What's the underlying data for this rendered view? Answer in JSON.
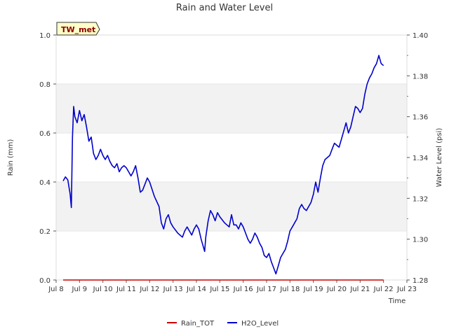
{
  "chart_data": {
    "type": "line",
    "title": "Rain and Water Level",
    "xlabel": "Time",
    "ylabel_left": "Rain (mm)",
    "ylabel_right": "Water Level (psi)",
    "badge": "TW_met",
    "x_tick_labels": [
      "Jul 8",
      "Jul 9",
      "Jul 10",
      "Jul 11",
      "Jul 12",
      "Jul 13",
      "Jul 14",
      "Jul 15",
      "Jul 16",
      "Jul 17",
      "Jul 18",
      "Jul 19",
      "Jul 20",
      "Jul 21",
      "Jul 22",
      "Jul 23"
    ],
    "xlim_days": [
      8,
      23
    ],
    "ylim_left": [
      0.0,
      1.0
    ],
    "ylim_right": [
      1.28,
      1.4
    ],
    "y_left_ticks": [
      "0.0",
      "0.2",
      "0.4",
      "0.6",
      "0.8",
      "1.0"
    ],
    "y_right_ticks": [
      "1.28",
      "1.30",
      "1.32",
      "1.34",
      "1.36",
      "1.38",
      "1.40"
    ],
    "band_color": "#f2f2f2",
    "grid": true,
    "series": [
      {
        "name": "Rain_TOT",
        "color": "#cc0000",
        "axis": "left",
        "points": [
          [
            8.3,
            0.0
          ],
          [
            22.0,
            0.0
          ]
        ]
      },
      {
        "name": "H2O_Level",
        "color": "#0000cc",
        "axis": "right",
        "points": [
          [
            8.3,
            1.3285
          ],
          [
            8.4,
            1.3305
          ],
          [
            8.5,
            1.329
          ],
          [
            8.6,
            1.322
          ],
          [
            8.65,
            1.3155
          ],
          [
            8.7,
            1.35
          ],
          [
            8.75,
            1.365
          ],
          [
            8.8,
            1.36
          ],
          [
            8.9,
            1.357
          ],
          [
            9.0,
            1.363
          ],
          [
            9.1,
            1.358
          ],
          [
            9.2,
            1.361
          ],
          [
            9.3,
            1.355
          ],
          [
            9.4,
            1.348
          ],
          [
            9.5,
            1.35
          ],
          [
            9.6,
            1.342
          ],
          [
            9.7,
            1.339
          ],
          [
            9.8,
            1.341
          ],
          [
            9.9,
            1.344
          ],
          [
            10.0,
            1.341
          ],
          [
            10.1,
            1.339
          ],
          [
            10.2,
            1.341
          ],
          [
            10.3,
            1.338
          ],
          [
            10.4,
            1.336
          ],
          [
            10.5,
            1.335
          ],
          [
            10.6,
            1.337
          ],
          [
            10.7,
            1.333
          ],
          [
            10.8,
            1.335
          ],
          [
            10.9,
            1.336
          ],
          [
            11.0,
            1.335
          ],
          [
            11.1,
            1.333
          ],
          [
            11.2,
            1.331
          ],
          [
            11.3,
            1.333
          ],
          [
            11.4,
            1.336
          ],
          [
            11.5,
            1.33
          ],
          [
            11.6,
            1.323
          ],
          [
            11.7,
            1.324
          ],
          [
            11.8,
            1.327
          ],
          [
            11.9,
            1.33
          ],
          [
            12.0,
            1.328
          ],
          [
            12.2,
            1.321
          ],
          [
            12.4,
            1.316
          ],
          [
            12.5,
            1.308
          ],
          [
            12.6,
            1.305
          ],
          [
            12.7,
            1.31
          ],
          [
            12.8,
            1.312
          ],
          [
            12.9,
            1.308
          ],
          [
            13.0,
            1.306
          ],
          [
            13.2,
            1.303
          ],
          [
            13.4,
            1.301
          ],
          [
            13.5,
            1.304
          ],
          [
            13.6,
            1.306
          ],
          [
            13.7,
            1.304
          ],
          [
            13.8,
            1.302
          ],
          [
            13.9,
            1.305
          ],
          [
            14.0,
            1.307
          ],
          [
            14.1,
            1.305
          ],
          [
            14.2,
            1.3
          ],
          [
            14.35,
            1.294
          ],
          [
            14.4,
            1.301
          ],
          [
            14.5,
            1.309
          ],
          [
            14.6,
            1.314
          ],
          [
            14.7,
            1.312
          ],
          [
            14.8,
            1.309
          ],
          [
            14.9,
            1.313
          ],
          [
            15.0,
            1.311
          ],
          [
            15.2,
            1.308
          ],
          [
            15.4,
            1.306
          ],
          [
            15.5,
            1.312
          ],
          [
            15.6,
            1.307
          ],
          [
            15.7,
            1.307
          ],
          [
            15.8,
            1.305
          ],
          [
            15.9,
            1.308
          ],
          [
            16.0,
            1.306
          ],
          [
            16.1,
            1.303
          ],
          [
            16.2,
            1.3
          ],
          [
            16.3,
            1.298
          ],
          [
            16.4,
            1.3
          ],
          [
            16.5,
            1.303
          ],
          [
            16.6,
            1.301
          ],
          [
            16.7,
            1.298
          ],
          [
            16.8,
            1.296
          ],
          [
            16.9,
            1.292
          ],
          [
            17.0,
            1.291
          ],
          [
            17.1,
            1.293
          ],
          [
            17.2,
            1.289
          ],
          [
            17.3,
            1.286
          ],
          [
            17.4,
            1.283
          ],
          [
            17.5,
            1.287
          ],
          [
            17.6,
            1.291
          ],
          [
            17.7,
            1.293
          ],
          [
            17.8,
            1.295
          ],
          [
            17.9,
            1.299
          ],
          [
            18.0,
            1.304
          ],
          [
            18.1,
            1.306
          ],
          [
            18.2,
            1.308
          ],
          [
            18.3,
            1.31
          ],
          [
            18.4,
            1.315
          ],
          [
            18.5,
            1.317
          ],
          [
            18.6,
            1.315
          ],
          [
            18.7,
            1.314
          ],
          [
            18.8,
            1.316
          ],
          [
            18.9,
            1.318
          ],
          [
            19.0,
            1.322
          ],
          [
            19.1,
            1.328
          ],
          [
            19.2,
            1.323
          ],
          [
            19.3,
            1.33
          ],
          [
            19.4,
            1.336
          ],
          [
            19.5,
            1.339
          ],
          [
            19.6,
            1.34
          ],
          [
            19.7,
            1.341
          ],
          [
            19.8,
            1.344
          ],
          [
            19.9,
            1.347
          ],
          [
            20.0,
            1.346
          ],
          [
            20.1,
            1.345
          ],
          [
            20.2,
            1.349
          ],
          [
            20.3,
            1.353
          ],
          [
            20.4,
            1.357
          ],
          [
            20.5,
            1.352
          ],
          [
            20.6,
            1.355
          ],
          [
            20.7,
            1.36
          ],
          [
            20.8,
            1.365
          ],
          [
            20.9,
            1.364
          ],
          [
            21.0,
            1.362
          ],
          [
            21.1,
            1.364
          ],
          [
            21.2,
            1.371
          ],
          [
            21.3,
            1.376
          ],
          [
            21.4,
            1.379
          ],
          [
            21.5,
            1.381
          ],
          [
            21.6,
            1.384
          ],
          [
            21.7,
            1.386
          ],
          [
            21.8,
            1.39
          ],
          [
            21.9,
            1.386
          ],
          [
            22.0,
            1.385
          ]
        ]
      }
    ],
    "legend": [
      "Rain_TOT",
      "H2O_Level"
    ],
    "legend_position": "bottom-center"
  }
}
